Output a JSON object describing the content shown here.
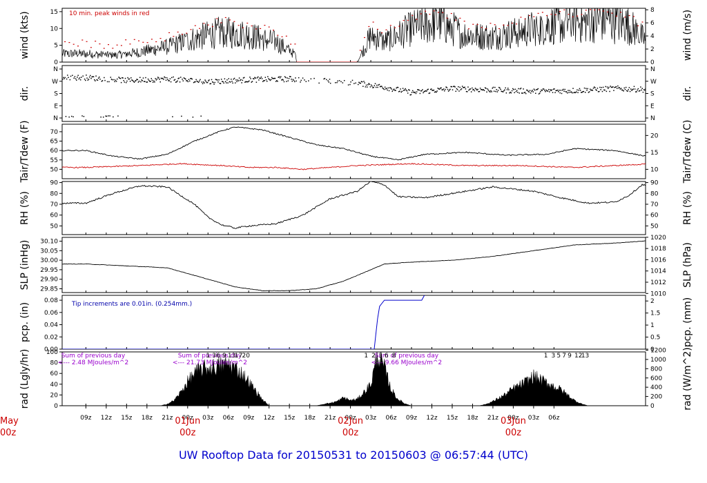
{
  "title": "UW Rooftop Data for 20150531  to  20150603 @ 06:57:44  (UTC)",
  "chart_data": [
    {
      "type": "line",
      "name": "wind",
      "ylabel_left": "wind (kts)",
      "ylabel_right": "wind (m/s)",
      "ylim": [
        0,
        16
      ],
      "yticks_left": [
        0,
        5,
        10,
        15
      ],
      "yticks_right": [
        0,
        2,
        4,
        6,
        8
      ],
      "annotation": "10 min. peak winds in red",
      "x_hours": [
        0,
        4,
        8,
        12,
        16,
        20,
        24,
        28,
        31,
        34,
        37,
        40,
        42,
        44,
        48,
        52,
        56,
        60,
        64,
        68,
        72,
        76,
        80,
        84,
        86
      ],
      "values": [
        2.5,
        2,
        3,
        4.5,
        7,
        9,
        8,
        6,
        2,
        0,
        0,
        0,
        8,
        6,
        10,
        12,
        8,
        7.5,
        9,
        11,
        11.5,
        12.5,
        11,
        4,
        5
      ],
      "peak_color": "#cc0000"
    },
    {
      "type": "scatter",
      "name": "dir",
      "ylabel_left": "dir.",
      "ylabel_right": "dir.",
      "yticks_left": [
        "N",
        "W",
        "S",
        "E",
        "N"
      ],
      "yticks_right": [
        "N",
        "W",
        "S",
        "E",
        "N"
      ],
      "x_hours": [
        0,
        6,
        12,
        18,
        24,
        30,
        36,
        40,
        44,
        48,
        54,
        60,
        66,
        72,
        78,
        84,
        86
      ],
      "values": [
        300,
        280,
        290,
        270,
        285,
        290,
        275,
        260,
        230,
        190,
        220,
        210,
        200,
        205,
        220,
        210,
        200
      ]
    },
    {
      "type": "line",
      "name": "temp",
      "ylabel_left": "Tair/Tdew (F)",
      "ylabel_right": "Tair/Tdew (C)",
      "ylim": [
        45,
        74
      ],
      "yticks_left": [
        50,
        55,
        60,
        65,
        70
      ],
      "yticks_right": [
        10,
        15,
        20
      ],
      "series": [
        {
          "x_hours": [
            0,
            4,
            8,
            12,
            16,
            20,
            22,
            26,
            30,
            34,
            38,
            42,
            46,
            50,
            56,
            62,
            68,
            72,
            78,
            84,
            86
          ],
          "values": [
            60,
            57,
            55.5,
            58,
            65,
            70.5,
            72.5,
            71,
            67,
            63,
            61,
            57,
            55,
            58,
            59,
            57.5,
            58,
            61,
            60,
            56,
            56
          ],
          "color": "#000000"
        },
        {
          "x_hours": [
            0,
            8,
            14,
            20,
            24,
            28,
            32,
            40,
            48,
            56,
            64,
            72,
            78,
            84,
            86
          ],
          "values": [
            51,
            52,
            53,
            52,
            51,
            51,
            50,
            52,
            53,
            52,
            52,
            51,
            52,
            53,
            52
          ],
          "color": "#cc0000"
        }
      ]
    },
    {
      "type": "line",
      "name": "rh",
      "ylabel_left": "RH (%)",
      "ylabel_right": "RH (%)",
      "ylim": [
        42,
        91
      ],
      "yticks_left": [
        50,
        60,
        70,
        80,
        90
      ],
      "yticks_right": [
        50,
        60,
        70,
        80,
        90
      ],
      "x_hours": [
        0,
        4,
        8,
        12,
        16,
        18,
        20,
        22,
        24,
        28,
        32,
        36,
        40,
        42,
        44,
        46,
        50,
        54,
        60,
        66,
        70,
        74,
        78,
        80,
        82,
        84,
        86
      ],
      "values": [
        71,
        80,
        87,
        86,
        70,
        58,
        51,
        48,
        50,
        52,
        60,
        75,
        82,
        91,
        88,
        77,
        76,
        80,
        86,
        82,
        76,
        71,
        72,
        78,
        88,
        86,
        86
      ]
    },
    {
      "type": "line",
      "name": "slp",
      "ylabel_left": "SLP (inHg)",
      "ylabel_right": "SLP (hPa)",
      "ylim": [
        29.83,
        30.12
      ],
      "yticks_left": [
        29.85,
        29.9,
        29.95,
        30.0,
        30.05,
        30.1
      ],
      "yticks_right": [
        1010,
        1012,
        1014,
        1016,
        1018,
        1020
      ],
      "x_hours": [
        0,
        6,
        12,
        18,
        22,
        26,
        30,
        34,
        38,
        42,
        44,
        48,
        54,
        60,
        66,
        72,
        78,
        82,
        86
      ],
      "values": [
        29.98,
        29.97,
        29.96,
        29.9,
        29.86,
        29.84,
        29.84,
        29.85,
        29.89,
        29.95,
        29.98,
        29.99,
        30.0,
        30.02,
        30.05,
        30.08,
        30.09,
        30.1,
        30.12
      ]
    },
    {
      "type": "line",
      "name": "pcp",
      "ylabel_left": "pcp. (in)",
      "ylabel_right": "pcp. (mm)",
      "ylim": [
        0,
        0.088
      ],
      "yticks_left": [
        0.0,
        0.02,
        0.04,
        0.06,
        0.08
      ],
      "yticks_right": [
        0,
        0.5,
        1,
        1.5,
        2
      ],
      "annotation": "Tip increments are 0.01in. (0.254mm.)",
      "x_hours": [
        0,
        42.5,
        42.8,
        43.0,
        43.3,
        44,
        49.5,
        50,
        86
      ],
      "values": [
        0,
        0,
        0.03,
        0.05,
        0.07,
        0.08,
        0.08,
        0.09,
        0.09
      ],
      "color": "#0000cc"
    },
    {
      "type": "area",
      "name": "rad",
      "ylabel_left": "rad (Lgly/hr)",
      "ylabel_right": "rad (W/m^2)",
      "ylim": [
        0,
        100
      ],
      "yticks_left": [
        0,
        20,
        40,
        60,
        80,
        100
      ],
      "yticks_right": [
        0,
        200,
        400,
        600,
        800,
        1000,
        1200
      ],
      "annotations": [
        {
          "line1": "Sum of previous day",
          "line2": "<--- 2.48 MJoules/m^2"
        },
        {
          "line1": "Sum of previous day",
          "line2": "<--- 21.73 MJoules/m^2"
        },
        {
          "line1": "Sum of previous day",
          "line2": "<--- 9.66 MJoules/m^2"
        }
      ],
      "hour_markers": [
        {
          "x_hour": 18.0,
          "label": "1"
        },
        {
          "x_hour": 18.9,
          "label": "3"
        },
        {
          "x_hour": 19.5,
          "label": "6"
        },
        {
          "x_hour": 20.4,
          "label": "9"
        },
        {
          "x_hour": 21.5,
          "label": "13"
        },
        {
          "x_hour": 22.5,
          "label": "17"
        },
        {
          "x_hour": 23.6,
          "label": "20"
        },
        {
          "x_hour": 41.3,
          "label": "1"
        },
        {
          "x_hour": 42.4,
          "label": "2"
        },
        {
          "x_hour": 43.4,
          "label": "3"
        },
        {
          "x_hour": 44.3,
          "label": "6"
        },
        {
          "x_hour": 45.4,
          "label": "8"
        },
        {
          "x_hour": 67.8,
          "label": "1"
        },
        {
          "x_hour": 68.9,
          "label": "3"
        },
        {
          "x_hour": 69.7,
          "label": "5"
        },
        {
          "x_hour": 70.5,
          "label": "7"
        },
        {
          "x_hour": 71.3,
          "label": "9"
        },
        {
          "x_hour": 72.6,
          "label": "12"
        },
        {
          "x_hour": 73.6,
          "label": "13"
        }
      ],
      "x_hours": [
        11,
        12,
        13,
        14,
        15,
        16,
        17,
        18,
        19,
        20,
        21,
        22,
        23,
        24,
        25,
        26,
        27,
        34,
        35,
        36,
        37,
        38,
        39,
        40,
        41,
        42,
        43,
        44,
        45,
        46,
        47,
        48,
        49,
        50,
        51,
        58,
        59,
        60,
        61,
        62,
        63,
        64,
        65,
        66,
        67,
        68,
        69,
        70,
        71,
        72,
        73,
        74,
        75
      ],
      "values": [
        0,
        3,
        10,
        25,
        45,
        60,
        68,
        70,
        72,
        75,
        78,
        70,
        60,
        45,
        28,
        12,
        0,
        0,
        3,
        5,
        8,
        15,
        10,
        12,
        25,
        40,
        95,
        70,
        30,
        12,
        4,
        0,
        0,
        0,
        0,
        0,
        3,
        8,
        15,
        22,
        32,
        38,
        45,
        55,
        48,
        42,
        36,
        30,
        20,
        10,
        4,
        0,
        0
      ]
    }
  ],
  "x_axis": {
    "hour_ticks": [
      "09z",
      "12z",
      "15z",
      "18z",
      "21z",
      "00z",
      "03z",
      "06z",
      "09z",
      "12z",
      "15z",
      "18z",
      "21z",
      "00z",
      "03z",
      "06z",
      "09z",
      "12z",
      "15z",
      "18z",
      "21z",
      "00z",
      "03z",
      "06z"
    ],
    "hour_offsets": [
      0,
      3,
      6,
      9,
      12,
      15,
      18,
      21,
      24,
      27,
      30,
      33,
      36,
      39,
      42,
      45,
      48,
      51,
      54,
      57,
      60,
      63,
      66,
      69
    ],
    "x_range_hours": [
      -3.5,
      82.5
    ],
    "day_labels": [
      {
        "offset": -15,
        "line1": "May",
        "line2": "00z"
      },
      {
        "offset": 15,
        "line1": "01Jun",
        "line2": "00z"
      },
      {
        "offset": 39,
        "line1": "02Jun",
        "line2": "00z"
      },
      {
        "offset": 63,
        "line1": "03Jun",
        "line2": "00z"
      }
    ]
  }
}
